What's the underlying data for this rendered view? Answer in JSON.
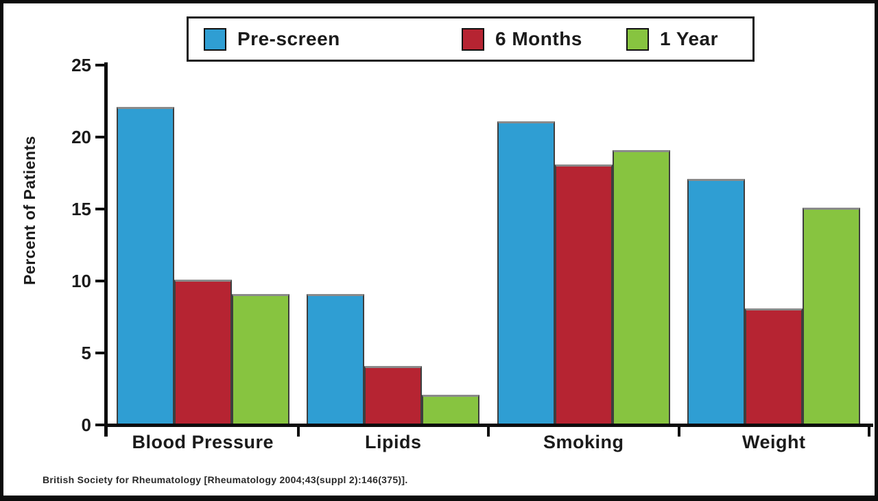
{
  "footer": {
    "citation": "British Society for Rheumatology [Rheumatology 2004;43(suppl 2):146(375)]."
  },
  "chart_data": {
    "type": "bar",
    "title": "",
    "categories": [
      "Blood Pressure",
      "Lipids",
      "Smoking",
      "Weight"
    ],
    "series": [
      {
        "name": "Pre-screen",
        "color": "#2f9ed3",
        "values": [
          22,
          9,
          21,
          17
        ]
      },
      {
        "name": "6 Months",
        "color": "#b62432",
        "values": [
          10,
          4,
          18,
          8
        ]
      },
      {
        "name": "1 Year",
        "color": "#87c440",
        "values": [
          9,
          2,
          19,
          15
        ]
      }
    ],
    "xlabel": "",
    "ylabel": "Percent of Patients",
    "ylim": [
      0,
      25
    ],
    "yticks": [
      0,
      5,
      10,
      15,
      20,
      25
    ],
    "grid": false,
    "legend_position": "top"
  }
}
